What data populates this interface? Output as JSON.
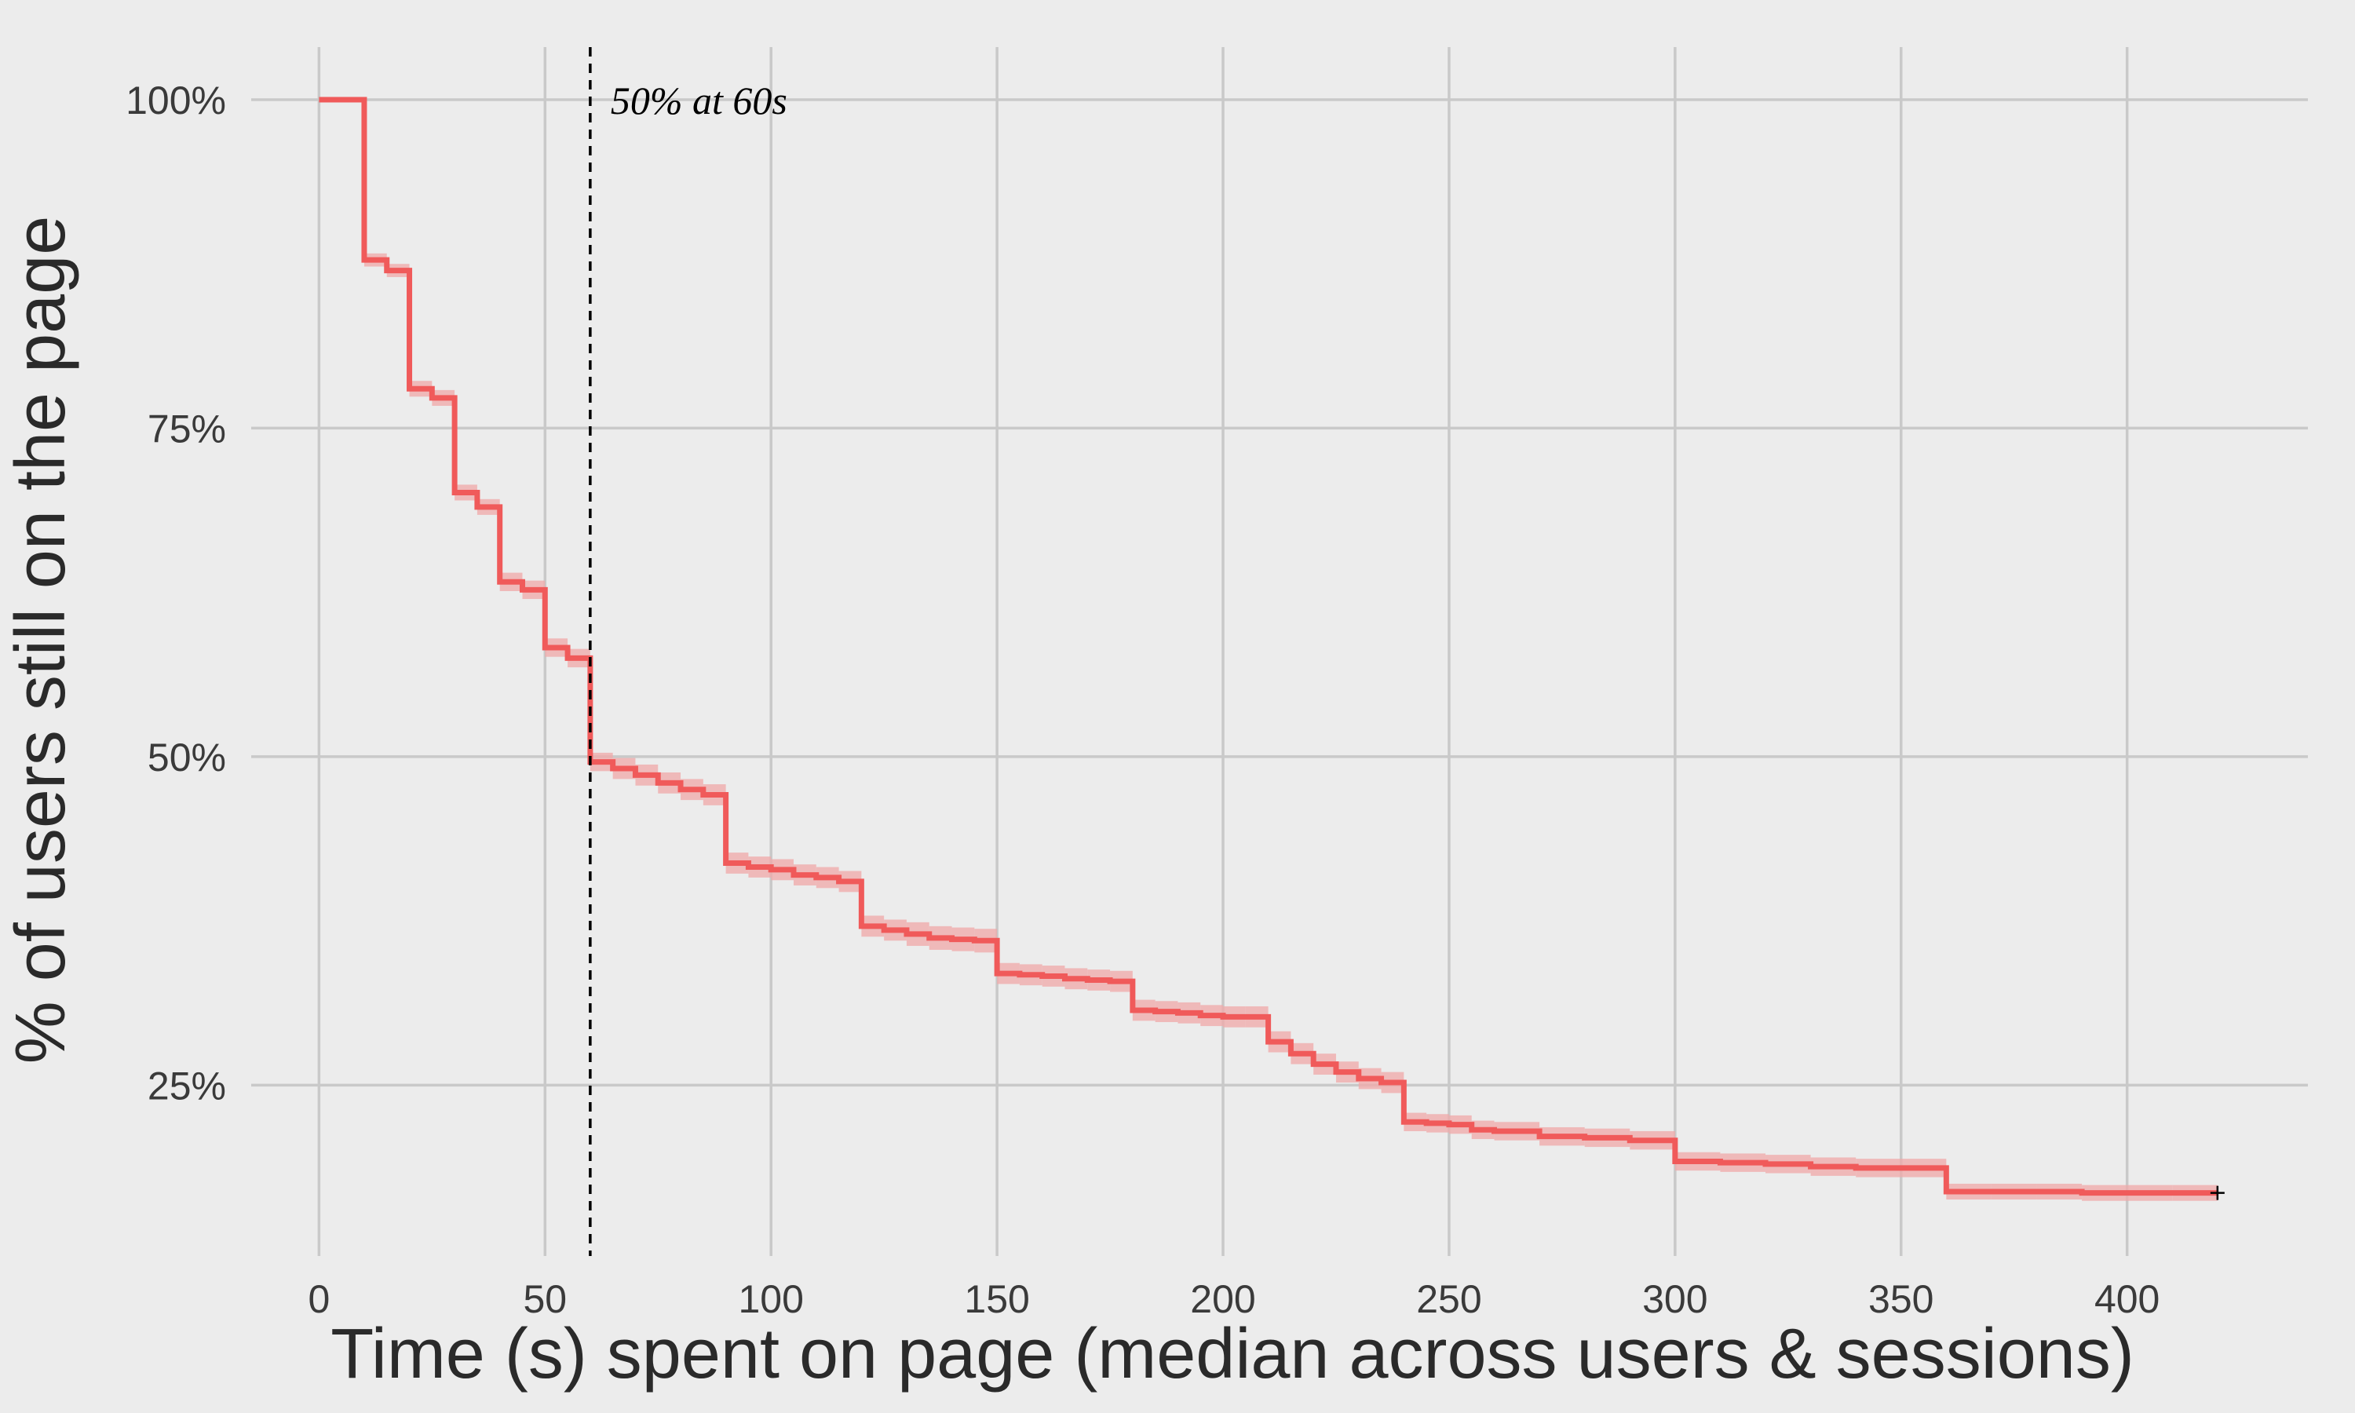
{
  "chart_data": {
    "type": "line",
    "step": true,
    "title": "",
    "xlabel": "Time (s) spent on page (median across users & sessions)",
    "ylabel": "% of users still on the page",
    "xlim": [
      -15,
      440
    ],
    "ylim": [
      12,
      104
    ],
    "x_ticks": [
      0,
      50,
      100,
      150,
      200,
      250,
      300,
      350,
      400
    ],
    "x_tick_labels": [
      "0",
      "50",
      "100",
      "150",
      "200",
      "250",
      "300",
      "350",
      "400"
    ],
    "y_ticks": [
      25,
      50,
      75,
      100
    ],
    "y_tick_labels": [
      "25%",
      "50%",
      "75%",
      "100%"
    ],
    "grid": true,
    "colors": {
      "line": "#f05a5a",
      "band": "#f0a8a8",
      "background": "#ececec",
      "grid": "#c9c9c9"
    },
    "series": [
      {
        "x": [
          0,
          10,
          15,
          20,
          25,
          30,
          35,
          40,
          45,
          50,
          55,
          60,
          65,
          70,
          75,
          80,
          85,
          90,
          95,
          100,
          105,
          110,
          115,
          120,
          125,
          130,
          135,
          140,
          145,
          150,
          155,
          160,
          165,
          170,
          175,
          180,
          185,
          190,
          195,
          200,
          205,
          210,
          215,
          220,
          225,
          230,
          235,
          240,
          245,
          250,
          255,
          260,
          270,
          280,
          290,
          300,
          310,
          320,
          330,
          340,
          350,
          360,
          370,
          380,
          390,
          400,
          410,
          420
        ],
        "y": [
          100,
          87.8,
          87.0,
          78.0,
          77.3,
          70.1,
          69.0,
          63.3,
          62.7,
          58.3,
          57.5,
          49.6,
          49.1,
          48.6,
          48.0,
          47.5,
          47.1,
          41.9,
          41.6,
          41.4,
          41.0,
          40.8,
          40.5,
          37.1,
          36.8,
          36.5,
          36.2,
          36.1,
          36.0,
          33.5,
          33.4,
          33.3,
          33.1,
          33.0,
          32.9,
          30.7,
          30.6,
          30.5,
          30.3,
          30.2,
          30.2,
          28.3,
          27.4,
          26.6,
          26.0,
          25.5,
          25.2,
          22.2,
          22.1,
          22.0,
          21.6,
          21.5,
          21.1,
          21.0,
          20.8,
          19.2,
          19.1,
          19.0,
          18.8,
          18.7,
          18.7,
          16.9,
          16.9,
          16.9,
          16.8,
          16.8,
          16.8,
          16.8
        ],
        "ci_lower": [
          100,
          87.3,
          86.5,
          77.4,
          76.7,
          69.5,
          68.4,
          62.6,
          62.0,
          57.6,
          56.8,
          48.9,
          48.3,
          47.8,
          47.2,
          46.7,
          46.3,
          41.1,
          40.8,
          40.6,
          40.2,
          40.0,
          39.7,
          36.3,
          36.0,
          35.6,
          35.3,
          35.2,
          35.1,
          32.7,
          32.6,
          32.5,
          32.3,
          32.2,
          32.1,
          29.9,
          29.8,
          29.7,
          29.5,
          29.4,
          29.4,
          27.5,
          26.6,
          25.8,
          25.2,
          24.7,
          24.4,
          21.5,
          21.4,
          21.3,
          20.9,
          20.8,
          20.4,
          20.3,
          20.1,
          18.5,
          18.4,
          18.3,
          18.1,
          18.0,
          18.0,
          16.3,
          16.3,
          16.3,
          16.2,
          16.2,
          16.2,
          16.2
        ],
        "ci_upper": [
          100,
          88.3,
          87.5,
          78.6,
          77.9,
          70.7,
          69.6,
          64.0,
          63.4,
          59.0,
          58.2,
          50.3,
          49.9,
          49.4,
          48.8,
          48.3,
          47.9,
          42.7,
          42.4,
          42.2,
          41.8,
          41.6,
          41.3,
          37.9,
          37.6,
          37.4,
          37.1,
          37.0,
          36.9,
          34.3,
          34.2,
          34.1,
          33.9,
          33.8,
          33.7,
          31.5,
          31.4,
          31.3,
          31.1,
          31.0,
          31.0,
          29.1,
          28.2,
          27.4,
          26.8,
          26.3,
          26.0,
          22.9,
          22.8,
          22.7,
          22.3,
          22.2,
          21.8,
          21.7,
          21.5,
          19.9,
          19.8,
          19.7,
          19.5,
          19.4,
          19.4,
          17.5,
          17.5,
          17.5,
          17.4,
          17.4,
          17.4,
          17.4
        ],
        "censor_marks": [
          {
            "x": 420,
            "y": 16.8
          }
        ]
      }
    ],
    "annotations": [
      {
        "type": "vline",
        "x": 60,
        "style": "dashed",
        "text": "50% at 60s"
      }
    ]
  }
}
